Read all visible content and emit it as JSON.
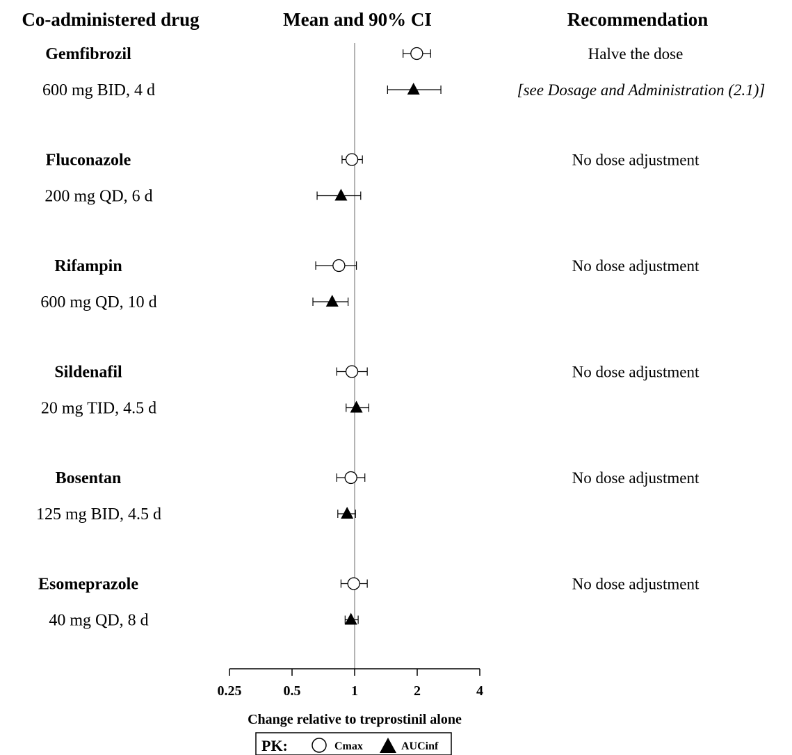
{
  "headers": {
    "drug": "Co-administered drug",
    "ci": "Mean and 90% CI",
    "recommendation": "Recommendation"
  },
  "chart_data": {
    "type": "forest",
    "xscale": "log2",
    "xlim": [
      0.25,
      4
    ],
    "xticks": [
      0.25,
      0.5,
      1,
      2,
      4
    ],
    "xtick_labels": [
      "0.25",
      "0.5",
      "1",
      "2",
      "4"
    ],
    "reference_line": 1,
    "xlabel": "Change relative to treprostinil alone",
    "legend": {
      "title": "PK:",
      "items": [
        {
          "marker": "open-circle",
          "label": "Cmax"
        },
        {
          "marker": "filled-triangle",
          "label": "AUCinf"
        }
      ],
      "placement": "bottom-center"
    },
    "rows": [
      {
        "drug": "Gemfibrozil",
        "dose": "600 mg BID, 4 d",
        "recommendation": "Halve the dose",
        "recommendation_note": "[see Dosage and Administration (2.1)]",
        "cmax": {
          "mean": 1.99,
          "lo": 1.71,
          "hi": 2.32
        },
        "aucinf": {
          "mean": 1.92,
          "lo": 1.44,
          "hi": 2.6
        }
      },
      {
        "drug": "Fluconazole",
        "dose": "200 mg QD, 6 d",
        "recommendation": "No dose adjustment",
        "recommendation_note": "",
        "cmax": {
          "mean": 0.97,
          "lo": 0.87,
          "hi": 1.09
        },
        "aucinf": {
          "mean": 0.86,
          "lo": 0.66,
          "hi": 1.07
        }
      },
      {
        "drug": "Rifampin",
        "dose": "600 mg QD, 10 d",
        "recommendation": "No dose adjustment",
        "recommendation_note": "",
        "cmax": {
          "mean": 0.84,
          "lo": 0.65,
          "hi": 1.02
        },
        "aucinf": {
          "mean": 0.78,
          "lo": 0.63,
          "hi": 0.93
        }
      },
      {
        "drug": "Sildenafil",
        "dose": "20 mg TID, 4.5 d",
        "recommendation": "No dose adjustment",
        "recommendation_note": "",
        "cmax": {
          "mean": 0.97,
          "lo": 0.82,
          "hi": 1.15
        },
        "aucinf": {
          "mean": 1.02,
          "lo": 0.91,
          "hi": 1.17
        }
      },
      {
        "drug": "Bosentan",
        "dose": "125 mg BID, 4.5 d",
        "recommendation": "No dose adjustment",
        "recommendation_note": "",
        "cmax": {
          "mean": 0.96,
          "lo": 0.82,
          "hi": 1.12
        },
        "aucinf": {
          "mean": 0.92,
          "lo": 0.83,
          "hi": 1.01
        }
      },
      {
        "drug": "Esomeprazole",
        "dose": "40 mg QD, 8 d",
        "recommendation": "No dose adjustment",
        "recommendation_note": "",
        "cmax": {
          "mean": 0.99,
          "lo": 0.86,
          "hi": 1.15
        },
        "aucinf": {
          "mean": 0.96,
          "lo": 0.9,
          "hi": 1.04
        }
      }
    ]
  }
}
